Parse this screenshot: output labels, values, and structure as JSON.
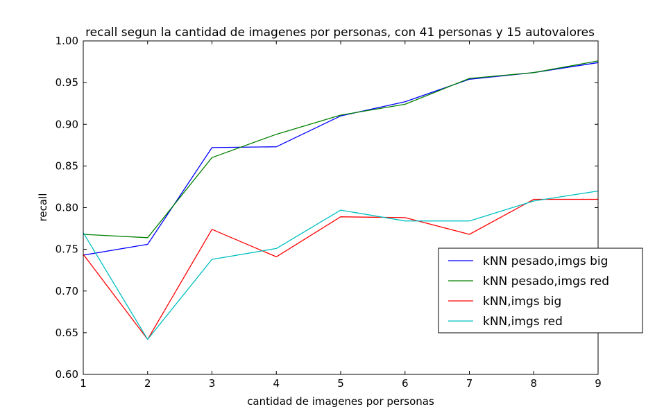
{
  "chart_data": {
    "type": "line",
    "title": "recall segun la cantidad de imagenes por personas, con 41 personas y 15 autovalores",
    "xlabel": "cantidad de imagenes por personas",
    "ylabel": "recall",
    "xlim": [
      1,
      9
    ],
    "ylim": [
      0.6,
      1.0
    ],
    "x_ticks": [
      "1",
      "2",
      "3",
      "4",
      "5",
      "6",
      "7",
      "8",
      "9"
    ],
    "y_ticks": [
      "0.60",
      "0.65",
      "0.70",
      "0.75",
      "0.80",
      "0.85",
      "0.90",
      "0.95",
      "1.00"
    ],
    "grid": false,
    "legend_position": "right",
    "x": [
      1,
      2,
      3,
      4,
      5,
      6,
      7,
      8,
      9
    ],
    "series": [
      {
        "name": "kNN pesado,imgs big",
        "color": "#0000ff",
        "values": [
          0.743,
          0.756,
          0.872,
          0.873,
          0.91,
          0.927,
          0.954,
          0.962,
          0.974
        ]
      },
      {
        "name": "kNN pesado,imgs red",
        "color": "#008000",
        "values": [
          0.768,
          0.764,
          0.86,
          0.888,
          0.911,
          0.924,
          0.955,
          0.962,
          0.976
        ]
      },
      {
        "name": "kNN,imgs big",
        "color": "#ff0000",
        "values": [
          0.744,
          0.642,
          0.774,
          0.741,
          0.789,
          0.788,
          0.768,
          0.81,
          0.81
        ]
      },
      {
        "name": "kNN,imgs red",
        "color": "#00bfbf",
        "values": [
          0.77,
          0.642,
          0.738,
          0.751,
          0.797,
          0.784,
          0.784,
          0.808,
          0.82
        ]
      }
    ]
  }
}
